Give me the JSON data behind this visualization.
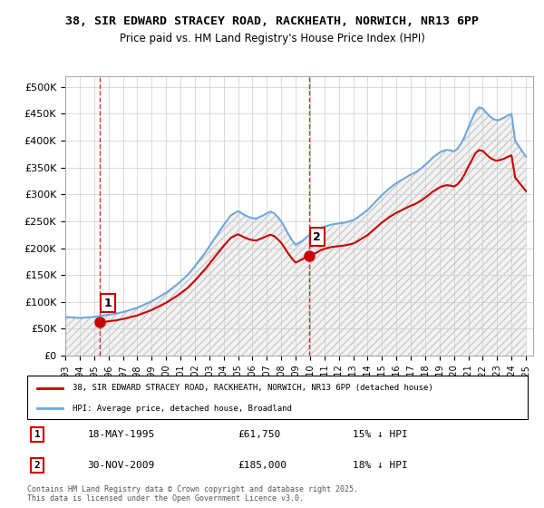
{
  "title_line1": "38, SIR EDWARD STRACEY ROAD, RACKHEATH, NORWICH, NR13 6PP",
  "title_line2": "Price paid vs. HM Land Registry's House Price Index (HPI)",
  "ylabel": "",
  "xlim_start": 1993,
  "xlim_end": 2025.5,
  "ylim": [
    0,
    520000
  ],
  "yticks": [
    0,
    50000,
    100000,
    150000,
    200000,
    250000,
    300000,
    350000,
    400000,
    450000,
    500000
  ],
  "ytick_labels": [
    "£0",
    "£50K",
    "£100K",
    "£150K",
    "£200K",
    "£250K",
    "£300K",
    "£350K",
    "£400K",
    "£450K",
    "£500K"
  ],
  "xticks": [
    1993,
    1994,
    1995,
    1996,
    1997,
    1998,
    1999,
    2000,
    2001,
    2002,
    2003,
    2004,
    2005,
    2006,
    2007,
    2008,
    2009,
    2010,
    2011,
    2012,
    2013,
    2014,
    2015,
    2016,
    2017,
    2018,
    2019,
    2020,
    2021,
    2022,
    2023,
    2024,
    2025
  ],
  "hpi_color": "#6fa8dc",
  "sale_color": "#cc0000",
  "vline_color": "#cc0000",
  "background_color": "#ffffff",
  "hatch_color": "#dddddd",
  "grid_color": "#cccccc",
  "sale1_year": 1995.38,
  "sale1_price": 61750,
  "sale1_label": "1",
  "sale2_year": 2009.92,
  "sale2_price": 185000,
  "sale2_label": "2",
  "legend_sale": "38, SIR EDWARD STRACEY ROAD, RACKHEATH, NORWICH, NR13 6PP (detached house)",
  "legend_hpi": "HPI: Average price, detached house, Broadland",
  "annotation1_date": "18-MAY-1995",
  "annotation1_price": "£61,750",
  "annotation1_hpi": "15% ↓ HPI",
  "annotation2_date": "30-NOV-2009",
  "annotation2_price": "£185,000",
  "annotation2_hpi": "18% ↓ HPI",
  "footer": "Contains HM Land Registry data © Crown copyright and database right 2025.\nThis data is licensed under the Open Government Licence v3.0.",
  "hpi_years": [
    1993,
    1993.25,
    1993.5,
    1993.75,
    1994,
    1994.25,
    1994.5,
    1994.75,
    1995,
    1995.25,
    1995.5,
    1995.75,
    1996,
    1996.25,
    1996.5,
    1996.75,
    1997,
    1997.25,
    1997.5,
    1997.75,
    1998,
    1998.25,
    1998.5,
    1998.75,
    1999,
    1999.25,
    1999.5,
    1999.75,
    2000,
    2000.25,
    2000.5,
    2000.75,
    2001,
    2001.25,
    2001.5,
    2001.75,
    2002,
    2002.25,
    2002.5,
    2002.75,
    2003,
    2003.25,
    2003.5,
    2003.75,
    2004,
    2004.25,
    2004.5,
    2004.75,
    2005,
    2005.25,
    2005.5,
    2005.75,
    2006,
    2006.25,
    2006.5,
    2006.75,
    2007,
    2007.25,
    2007.5,
    2007.75,
    2008,
    2008.25,
    2008.5,
    2008.75,
    2009,
    2009.25,
    2009.5,
    2009.75,
    2010,
    2010.25,
    2010.5,
    2010.75,
    2011,
    2011.25,
    2011.5,
    2011.75,
    2012,
    2012.25,
    2012.5,
    2012.75,
    2013,
    2013.25,
    2013.5,
    2013.75,
    2014,
    2014.25,
    2014.5,
    2014.75,
    2015,
    2015.25,
    2015.5,
    2015.75,
    2016,
    2016.25,
    2016.5,
    2016.75,
    2017,
    2017.25,
    2017.5,
    2017.75,
    2018,
    2018.25,
    2018.5,
    2018.75,
    2019,
    2019.25,
    2019.5,
    2019.75,
    2020,
    2020.25,
    2020.5,
    2020.75,
    2021,
    2021.25,
    2021.5,
    2021.75,
    2022,
    2022.25,
    2022.5,
    2022.75,
    2023,
    2023.25,
    2023.5,
    2023.75,
    2024,
    2024.25,
    2024.5,
    2024.75,
    2025
  ],
  "hpi_values": [
    72000,
    71500,
    71000,
    70500,
    70000,
    70500,
    71000,
    71500,
    72000,
    73000,
    74000,
    75000,
    76000,
    77000,
    78000,
    79500,
    81000,
    83000,
    85000,
    87000,
    89000,
    92000,
    95000,
    98000,
    101000,
    105000,
    109000,
    113000,
    117000,
    122000,
    127000,
    132000,
    138000,
    144000,
    150000,
    158000,
    166000,
    175000,
    184000,
    193000,
    203000,
    213000,
    223000,
    233000,
    243000,
    252000,
    261000,
    265000,
    269000,
    265000,
    261000,
    258000,
    256000,
    255000,
    258000,
    261000,
    265000,
    268000,
    265000,
    258000,
    250000,
    238000,
    226000,
    215000,
    206000,
    210000,
    214000,
    220000,
    225000,
    228000,
    232000,
    237000,
    240000,
    242000,
    244000,
    245000,
    246000,
    247000,
    248000,
    250000,
    252000,
    256000,
    261000,
    266000,
    271000,
    278000,
    285000,
    292000,
    299000,
    305000,
    311000,
    316000,
    321000,
    325000,
    329000,
    333000,
    337000,
    340000,
    344000,
    349000,
    355000,
    361000,
    368000,
    373000,
    378000,
    381000,
    383000,
    382000,
    380000,
    385000,
    395000,
    408000,
    425000,
    440000,
    455000,
    462000,
    460000,
    452000,
    445000,
    440000,
    438000,
    440000,
    443000,
    447000,
    450000,
    400000,
    390000,
    380000,
    370000
  ],
  "sale_years": [
    1995.38,
    2009.92
  ],
  "sale_prices": [
    61750,
    185000
  ]
}
